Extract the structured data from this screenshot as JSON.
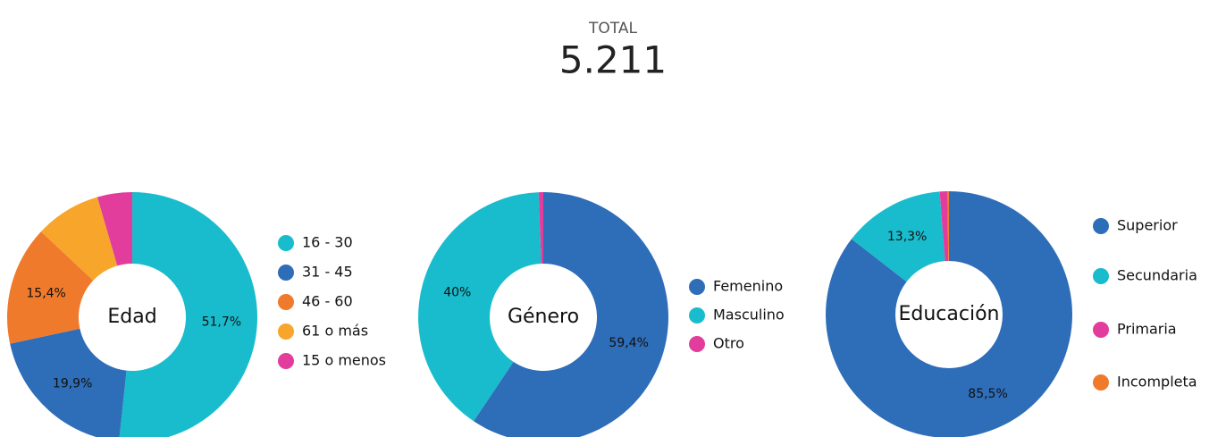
{
  "header": {
    "label": "TOTAL",
    "value": "5.211"
  },
  "chart_data": [
    {
      "type": "donut",
      "title": "Edad",
      "categories": [
        "16 - 30",
        "31 - 45",
        "46 - 60",
        "61 o más",
        "15 o menos"
      ],
      "values": [
        51.7,
        19.9,
        15.4,
        8.5,
        4.5
      ],
      "value_labels": [
        "51,7%",
        "19,9%",
        "15,4%",
        null,
        null
      ],
      "colors": [
        "#19bccd",
        "#2e6db8",
        "#f07a2c",
        "#f7a52b",
        "#e23d9c"
      ]
    },
    {
      "type": "donut",
      "title": "Género",
      "categories": [
        "Femenino",
        "Masculino",
        "Otro"
      ],
      "values": [
        59.4,
        40,
        0.6
      ],
      "value_labels": [
        "59,4%",
        "40%",
        null
      ],
      "colors": [
        "#2e6db8",
        "#19bccd",
        "#e23d9c"
      ]
    },
    {
      "type": "donut",
      "title": "Educación",
      "categories": [
        "Superior",
        "Secundaria",
        "Primaria",
        "Incompleta"
      ],
      "values": [
        85.5,
        13.3,
        1,
        0.2
      ],
      "value_labels": [
        "85,5%",
        "13,3%",
        null,
        null
      ],
      "colors": [
        "#2e6db8",
        "#19bccd",
        "#e23d9c",
        "#f07a2c"
      ]
    }
  ]
}
